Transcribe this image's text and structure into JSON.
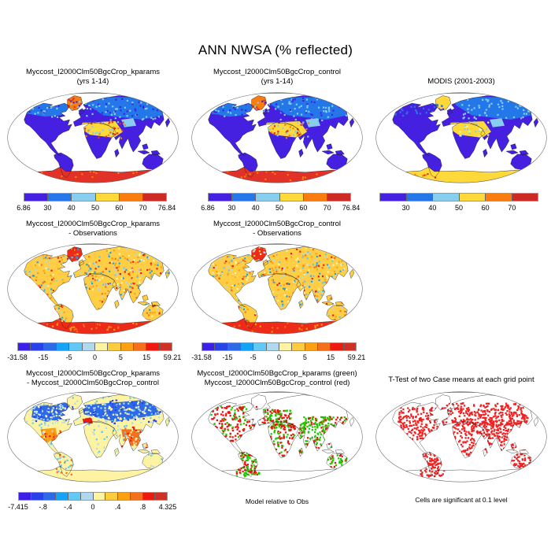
{
  "title": "ANN NWSA (% reflected)",
  "chart_data": {
    "type": "heatmap",
    "variable": "NWSA",
    "units": "% reflected",
    "season": "ANN",
    "colors": {
      "green": "#1ecc00",
      "red": "#ee1111",
      "ttest_red": "#ee2222",
      "hot_red": "#e23227",
      "obs_base_yellow": "#ffce45"
    },
    "colorbars": {
      "abs": {
        "ticks": [
          "6.86",
          "30",
          "40",
          "50",
          "60",
          "70",
          "76.84"
        ],
        "colors": [
          "#4520e0",
          "#2377e8",
          "#87cded",
          "#ffd93a",
          "#f87d0e",
          "#cd2a25"
        ]
      },
      "abs_modis": {
        "ticks": [
          "",
          "30",
          "40",
          "50",
          "60",
          "70",
          ""
        ],
        "colors": [
          "#4520e0",
          "#2377e8",
          "#87cded",
          "#ffd93a",
          "#f87d0e",
          "#cd2a25"
        ]
      },
      "diff_obs": {
        "ticks": [
          "-31.58",
          "-15",
          "-5",
          "0",
          "5",
          "15",
          "59.21"
        ],
        "colors": [
          "#3c20e8",
          "#2743e8",
          "#2e6ae8",
          "#16a3f5",
          "#62c8f5",
          "#aed9ef",
          "#fdf3a2",
          "#fccc3f",
          "#fba012",
          "#f5701d",
          "#ee1a10",
          "#d03125"
        ]
      },
      "diff_model": {
        "ticks": [
          "-7.415",
          "-.8",
          "-.4",
          "0",
          ".4",
          ".8",
          "4.325"
        ],
        "colors": [
          "#3c20e8",
          "#2743e8",
          "#2e6ae8",
          "#16a3f5",
          "#62c8f5",
          "#aed9ef",
          "#fdf3a2",
          "#fccc3f",
          "#fba012",
          "#f5701d",
          "#ee1a10",
          "#d03125"
        ]
      }
    },
    "panels": [
      {
        "id": "kparams_abs",
        "title_lines": [
          "Myccost_I2000Clm50BgcCrop_kparams",
          "(yrs 1-14)"
        ],
        "colorbar": "abs",
        "map_style": "model",
        "range_min": "6.86",
        "range_max": "76.84"
      },
      {
        "id": "control_abs",
        "title_lines": [
          "Myccost_I2000Clm50BgcCrop_control",
          "(yrs 1-14)"
        ],
        "colorbar": "abs",
        "map_style": "model",
        "range_min": "6.86",
        "range_max": "76.84"
      },
      {
        "id": "modis_obs",
        "title_lines": [
          "MODIS (2001-2003)"
        ],
        "colorbar": "abs_modis",
        "map_style": "modis"
      },
      {
        "id": "kparams_minus_obs",
        "title_lines": [
          "Myccost_I2000Clm50BgcCrop_kparams",
          "- Observations"
        ],
        "colorbar": "diff_obs",
        "map_style": "diffobs",
        "range_min": "-31.58",
        "range_max": "59.21"
      },
      {
        "id": "control_minus_obs",
        "title_lines": [
          "Myccost_I2000Clm50BgcCrop_control",
          "- Observations"
        ],
        "colorbar": "diff_obs",
        "map_style": "diffobs",
        "range_min": "-31.58",
        "range_max": "59.21"
      },
      {
        "id": "kparams_minus_control",
        "title_lines": [
          "Myccost_I2000Clm50BgcCrop_kparams",
          "- Myccost_I2000Clm50BgcCrop_control"
        ],
        "colorbar": "diff_model",
        "map_style": "diffmodel",
        "range_min": "-7.415",
        "range_max": "4.325"
      },
      {
        "id": "model_vs_obs_bias",
        "title_lines": [
          "Myccost_I2000Clm50BgcCrop_kparams (green)",
          "Myccost_I2000Clm50BgcCrop_control (red)"
        ],
        "caption": "Model relative to Obs",
        "map_style": "greenred"
      },
      {
        "id": "ttest",
        "title_lines": [
          "T-Test of two Case means at each grid point"
        ],
        "caption": "Cells are significant at 0.1 level",
        "map_style": "ttest"
      }
    ]
  }
}
